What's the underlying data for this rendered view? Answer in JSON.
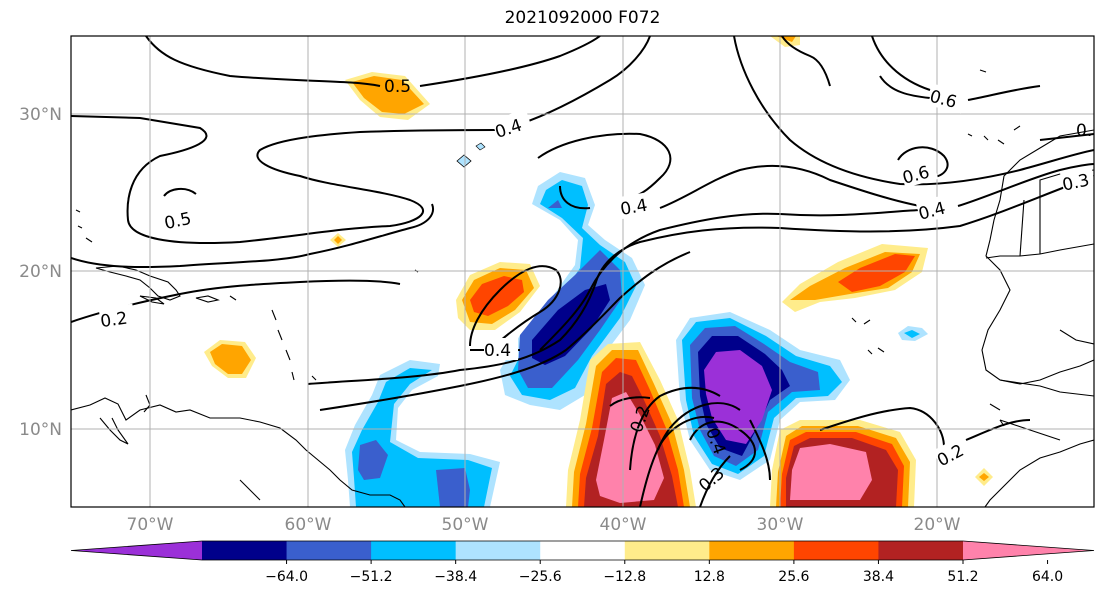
{
  "title": "2021092000 F072",
  "map": {
    "lon_ticks": [
      "70°W",
      "60°W",
      "50°W",
      "40°W",
      "30°W",
      "20°W"
    ],
    "lat_ticks": [
      "30°N",
      "20°N",
      "10°N"
    ],
    "gridlines": true,
    "contour_labels": [
      "0.5",
      "0.4",
      "0.5",
      "0.2",
      "0.4",
      "0.4",
      "0.6",
      "0.6",
      "0.4",
      "0.3",
      "0.2",
      "0.4",
      "0.3",
      "0.2",
      "0."
    ]
  },
  "colorbar": {
    "ticks": [
      "−64.0",
      "−51.2",
      "−38.4",
      "−25.6",
      "−12.8",
      "12.8",
      "25.6",
      "38.4",
      "51.2",
      "64.0"
    ],
    "colors": [
      "#9b30d8",
      "#00008b",
      "#3a5fcd",
      "#00bfff",
      "#aee3ff",
      "#ffffff",
      "#ffec8b",
      "#ffa500",
      "#ff4500",
      "#b22222",
      "#ff82ab"
    ],
    "extend": "both"
  }
}
